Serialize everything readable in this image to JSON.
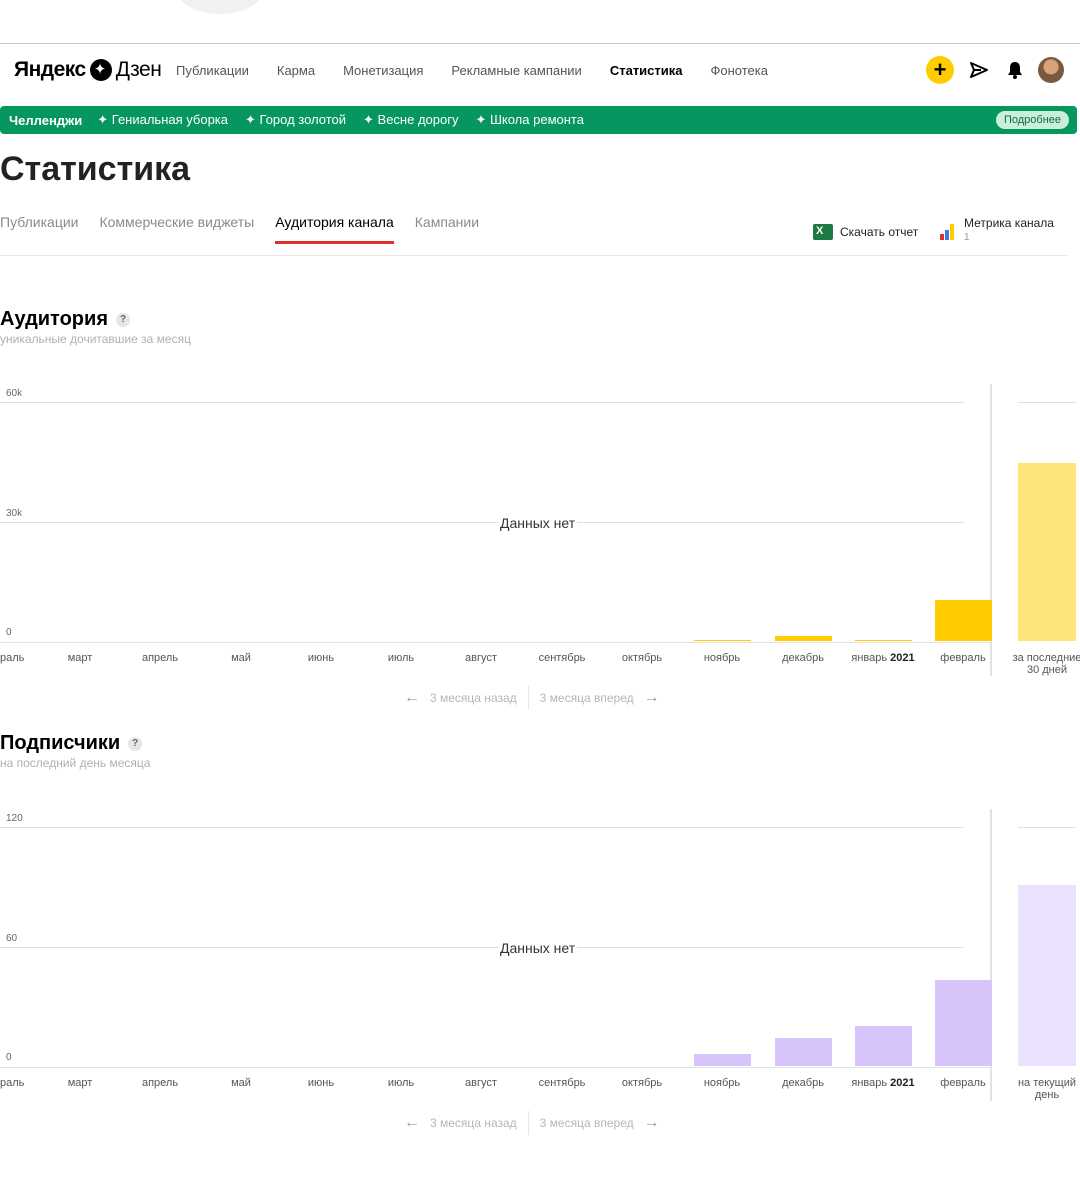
{
  "header": {
    "logo_part1": "Яндекс",
    "logo_part2": "Дзен",
    "nav": [
      "Публикации",
      "Карма",
      "Монетизация",
      "Рекламные кампании",
      "Статистика",
      "Фонотека"
    ],
    "nav_active": 4,
    "icons": [
      "plus-icon",
      "send-icon",
      "bell-icon",
      "avatar"
    ]
  },
  "challenges": {
    "label": "Челленджи",
    "items": [
      "✦ Гениальная уборка",
      "✦ Город золотой",
      "✦ Весне дорогу",
      "✦ Школа ремонта"
    ],
    "more": "Подробнее",
    "color": "#069660"
  },
  "page_title": "Статистика",
  "tabs": {
    "items": [
      "Публикации",
      "Коммерческие виджеты",
      "Аудитория канала",
      "Кампании"
    ],
    "active": 2,
    "report": "Скачать отчет",
    "metrika": "Метрика канала",
    "metrika_count": "1"
  },
  "audience": {
    "title": "Аудитория",
    "subtitle": "уникальные дочитавшие за месяц",
    "no_data": "Данных нет",
    "pager_back": "3 месяца назад",
    "pager_forward": "3 месяца вперед"
  },
  "subscribers": {
    "title": "Подписчики",
    "subtitle": "на последний день месяца",
    "no_data": "Данных нет",
    "pager_back": "3 месяца назад",
    "pager_forward": "3 месяца вперед"
  },
  "chart_data": [
    {
      "type": "bar",
      "yticks": [
        "60k",
        "30k",
        "0"
      ],
      "ylim": [
        0,
        60000
      ],
      "categories": [
        "раль",
        "март",
        "апрель",
        "май",
        "июнь",
        "июль",
        "август",
        "сентябрь",
        "октябрь",
        "ноябрь",
        "декабрь",
        "январь 2021",
        "февраль",
        "за последние 30 дней"
      ],
      "values": [
        0,
        0,
        0,
        0,
        0,
        0,
        0,
        0,
        0,
        200,
        1300,
        300,
        10200,
        44800
      ],
      "color": "#ffcc00",
      "last_color": "#ffe47a"
    },
    {
      "type": "bar",
      "yticks": [
        "120",
        "60",
        "0"
      ],
      "ylim": [
        0,
        120
      ],
      "categories": [
        "раль",
        "март",
        "апрель",
        "май",
        "июнь",
        "июль",
        "август",
        "сентябрь",
        "октябрь",
        "ноябрь",
        "декабрь",
        "январь 2021",
        "февраль",
        "на текущий день"
      ],
      "values": [
        0,
        0,
        0,
        0,
        0,
        0,
        0,
        0,
        0,
        6,
        14,
        20,
        43,
        91
      ],
      "color": "#d7c4fb",
      "last_color": "#eae2fc"
    }
  ]
}
